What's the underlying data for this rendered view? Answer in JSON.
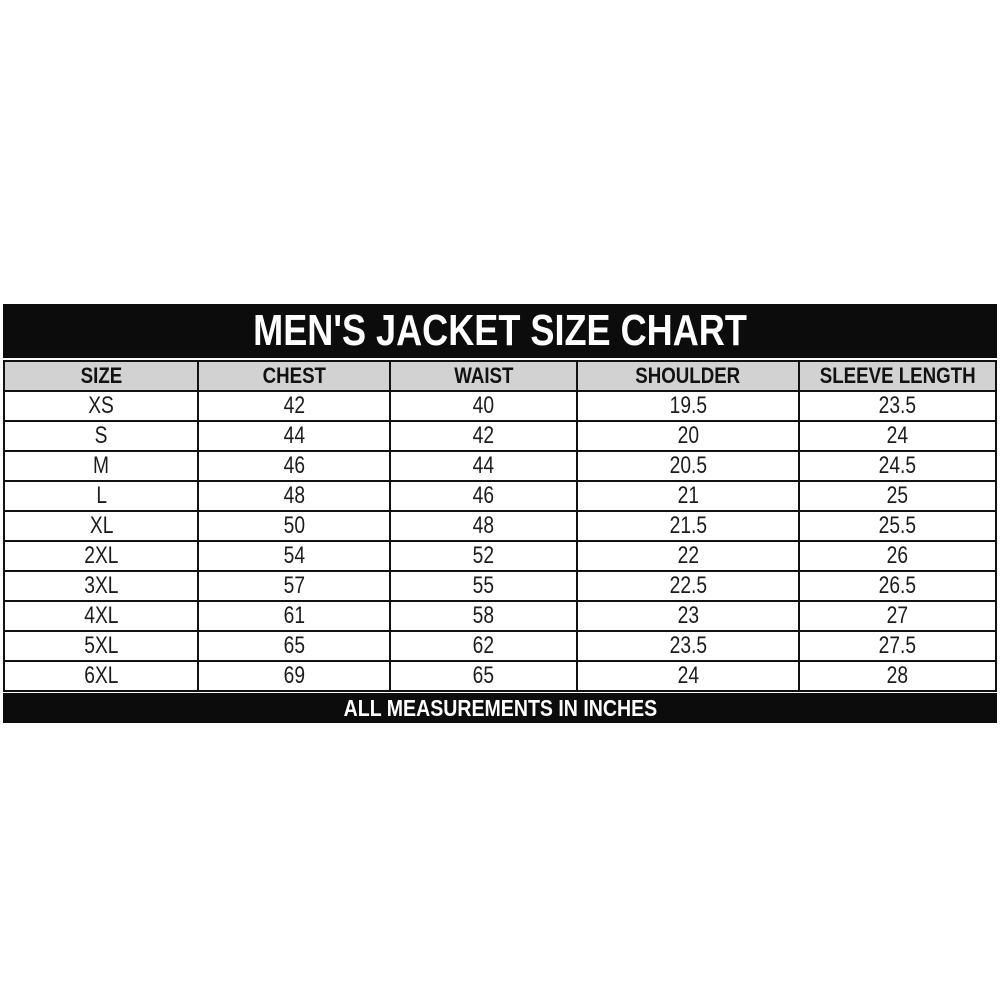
{
  "title": "MEN'S JACKET SIZE CHART",
  "footer_note": "ALL MEASUREMENTS IN INCHES",
  "colors": {
    "bar_background": "#0c0c0c",
    "bar_text": "#ffffff",
    "column_header_background": "#d2d2d2",
    "border": "#121212",
    "cell_background": "#ffffff",
    "cell_text": "#1c1c1c"
  },
  "chart_data": {
    "type": "table",
    "title": "MEN'S JACKET SIZE CHART",
    "columns": [
      "SIZE",
      "CHEST",
      "WAIST",
      "SHOULDER",
      "SLEEVE LENGTH"
    ],
    "rows": [
      [
        "XS",
        "42",
        "40",
        "19.5",
        "23.5"
      ],
      [
        "S",
        "44",
        "42",
        "20",
        "24"
      ],
      [
        "M",
        "46",
        "44",
        "20.5",
        "24.5"
      ],
      [
        "L",
        "48",
        "46",
        "21",
        "25"
      ],
      [
        "XL",
        "50",
        "48",
        "21.5",
        "25.5"
      ],
      [
        "2XL",
        "54",
        "52",
        "22",
        "26"
      ],
      [
        "3XL",
        "57",
        "55",
        "22.5",
        "26.5"
      ],
      [
        "4XL",
        "61",
        "58",
        "23",
        "27"
      ],
      [
        "5XL",
        "65",
        "62",
        "23.5",
        "27.5"
      ],
      [
        "6XL",
        "69",
        "65",
        "24",
        "28"
      ]
    ],
    "units_note": "ALL MEASUREMENTS IN INCHES"
  }
}
